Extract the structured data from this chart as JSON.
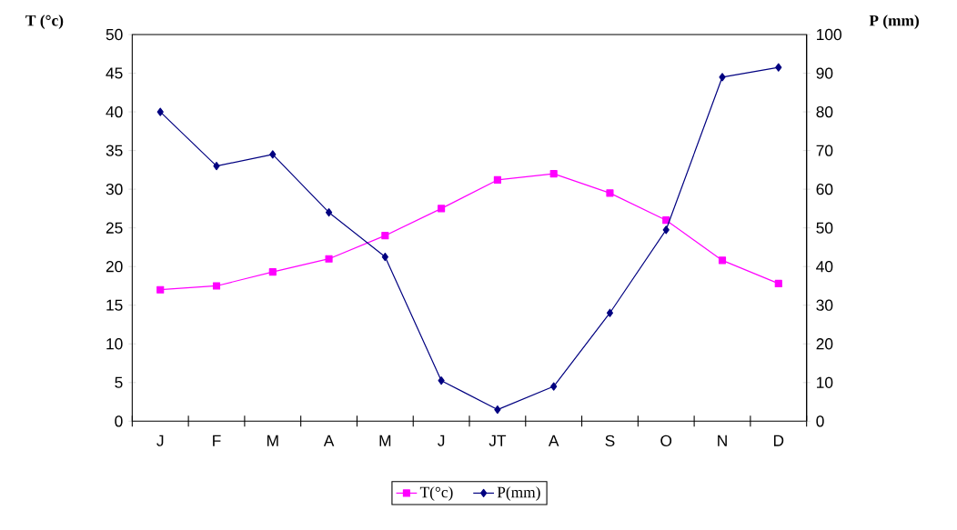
{
  "chart_data": {
    "type": "line",
    "categories": [
      "J",
      "F",
      "M",
      "A",
      "M",
      "J",
      "JT",
      "A",
      "S",
      "O",
      "N",
      "D"
    ],
    "ylabel": "T (°c)",
    "y2label": "P (mm)",
    "ylim": [
      0,
      50
    ],
    "yticks": [
      0,
      5,
      10,
      15,
      20,
      25,
      30,
      35,
      40,
      45,
      50
    ],
    "y2lim": [
      0,
      100
    ],
    "y2ticks": [
      0,
      10,
      20,
      30,
      40,
      50,
      60,
      70,
      80,
      90,
      100
    ],
    "legend": "bottom",
    "grid": false,
    "series": [
      {
        "name": "T(°c)",
        "color": "#ff00ff",
        "marker": "square",
        "values": [
          17,
          17.5,
          19.3,
          21,
          24,
          27.5,
          31.2,
          32,
          29.5,
          26,
          20.8,
          17.8
        ]
      },
      {
        "name": "P(mm)",
        "color": "#000080",
        "marker": "diamond",
        "axis": "y2",
        "values": [
          80,
          66,
          69,
          54,
          42.5,
          10.5,
          3,
          9,
          28,
          49.5,
          89,
          91.5
        ]
      }
    ]
  }
}
